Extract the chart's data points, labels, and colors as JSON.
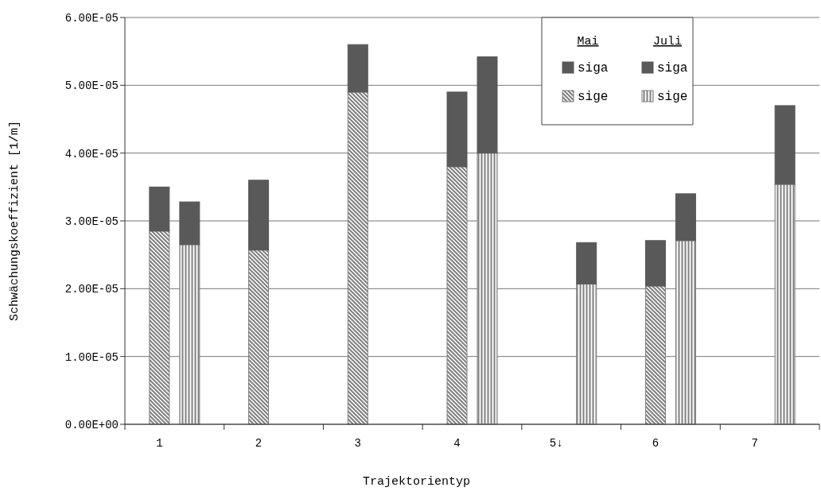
{
  "chart_data": {
    "type": "bar",
    "stacked": true,
    "xlabel": "Trajektorientyp",
    "ylabel": "Schwächungskoeffizient [1/m]",
    "annotations": [
      "Mai",
      "Juli"
    ],
    "categories": [
      "1",
      null,
      "2",
      null,
      "3",
      null,
      "4",
      null,
      "5↓",
      null,
      "6",
      null,
      "7",
      null
    ],
    "series": [
      {
        "name": "sige",
        "color": "#7f7f7f",
        "values": [
          2.85e-05,
          null,
          2.57e-05,
          null,
          4.9e-05,
          null,
          3.8e-05,
          null,
          null,
          null,
          2.04e-05,
          null,
          null,
          null
        ]
      },
      {
        "name": "siga",
        "color": "#595959",
        "values": [
          6.5e-06,
          null,
          1.03e-05,
          null,
          7e-06,
          null,
          1.1e-05,
          null,
          null,
          null,
          6.7e-06,
          null,
          null,
          null
        ]
      },
      {
        "name": "sige",
        "color": "#7f7f7f",
        "values": [
          null,
          2.65e-05,
          null,
          null,
          null,
          null,
          null,
          4e-05,
          null,
          2.07e-05,
          null,
          2.71e-05,
          null,
          3.54e-05
        ]
      },
      {
        "name": "siga",
        "color": "#595959",
        "values": [
          null,
          6.3e-06,
          null,
          null,
          null,
          null,
          null,
          1.42e-05,
          null,
          6.1e-06,
          null,
          6.9e-06,
          null,
          1.16e-05
        ]
      }
    ],
    "ylim": [
      0,
      6e-05
    ],
    "yticks": [
      {
        "value": 0,
        "label": "0.00E+00"
      },
      {
        "value": 1e-05,
        "label": "1.00E-05"
      },
      {
        "value": 2e-05,
        "label": "2.00E-05"
      },
      {
        "value": 3e-05,
        "label": "3.00E-05"
      },
      {
        "value": 4e-05,
        "label": "4.00E-05"
      },
      {
        "value": 5e-05,
        "label": "5.00E-05"
      },
      {
        "value": 6e-05,
        "label": "6.00E-05"
      }
    ],
    "grid": "y",
    "legend": "top right"
  }
}
